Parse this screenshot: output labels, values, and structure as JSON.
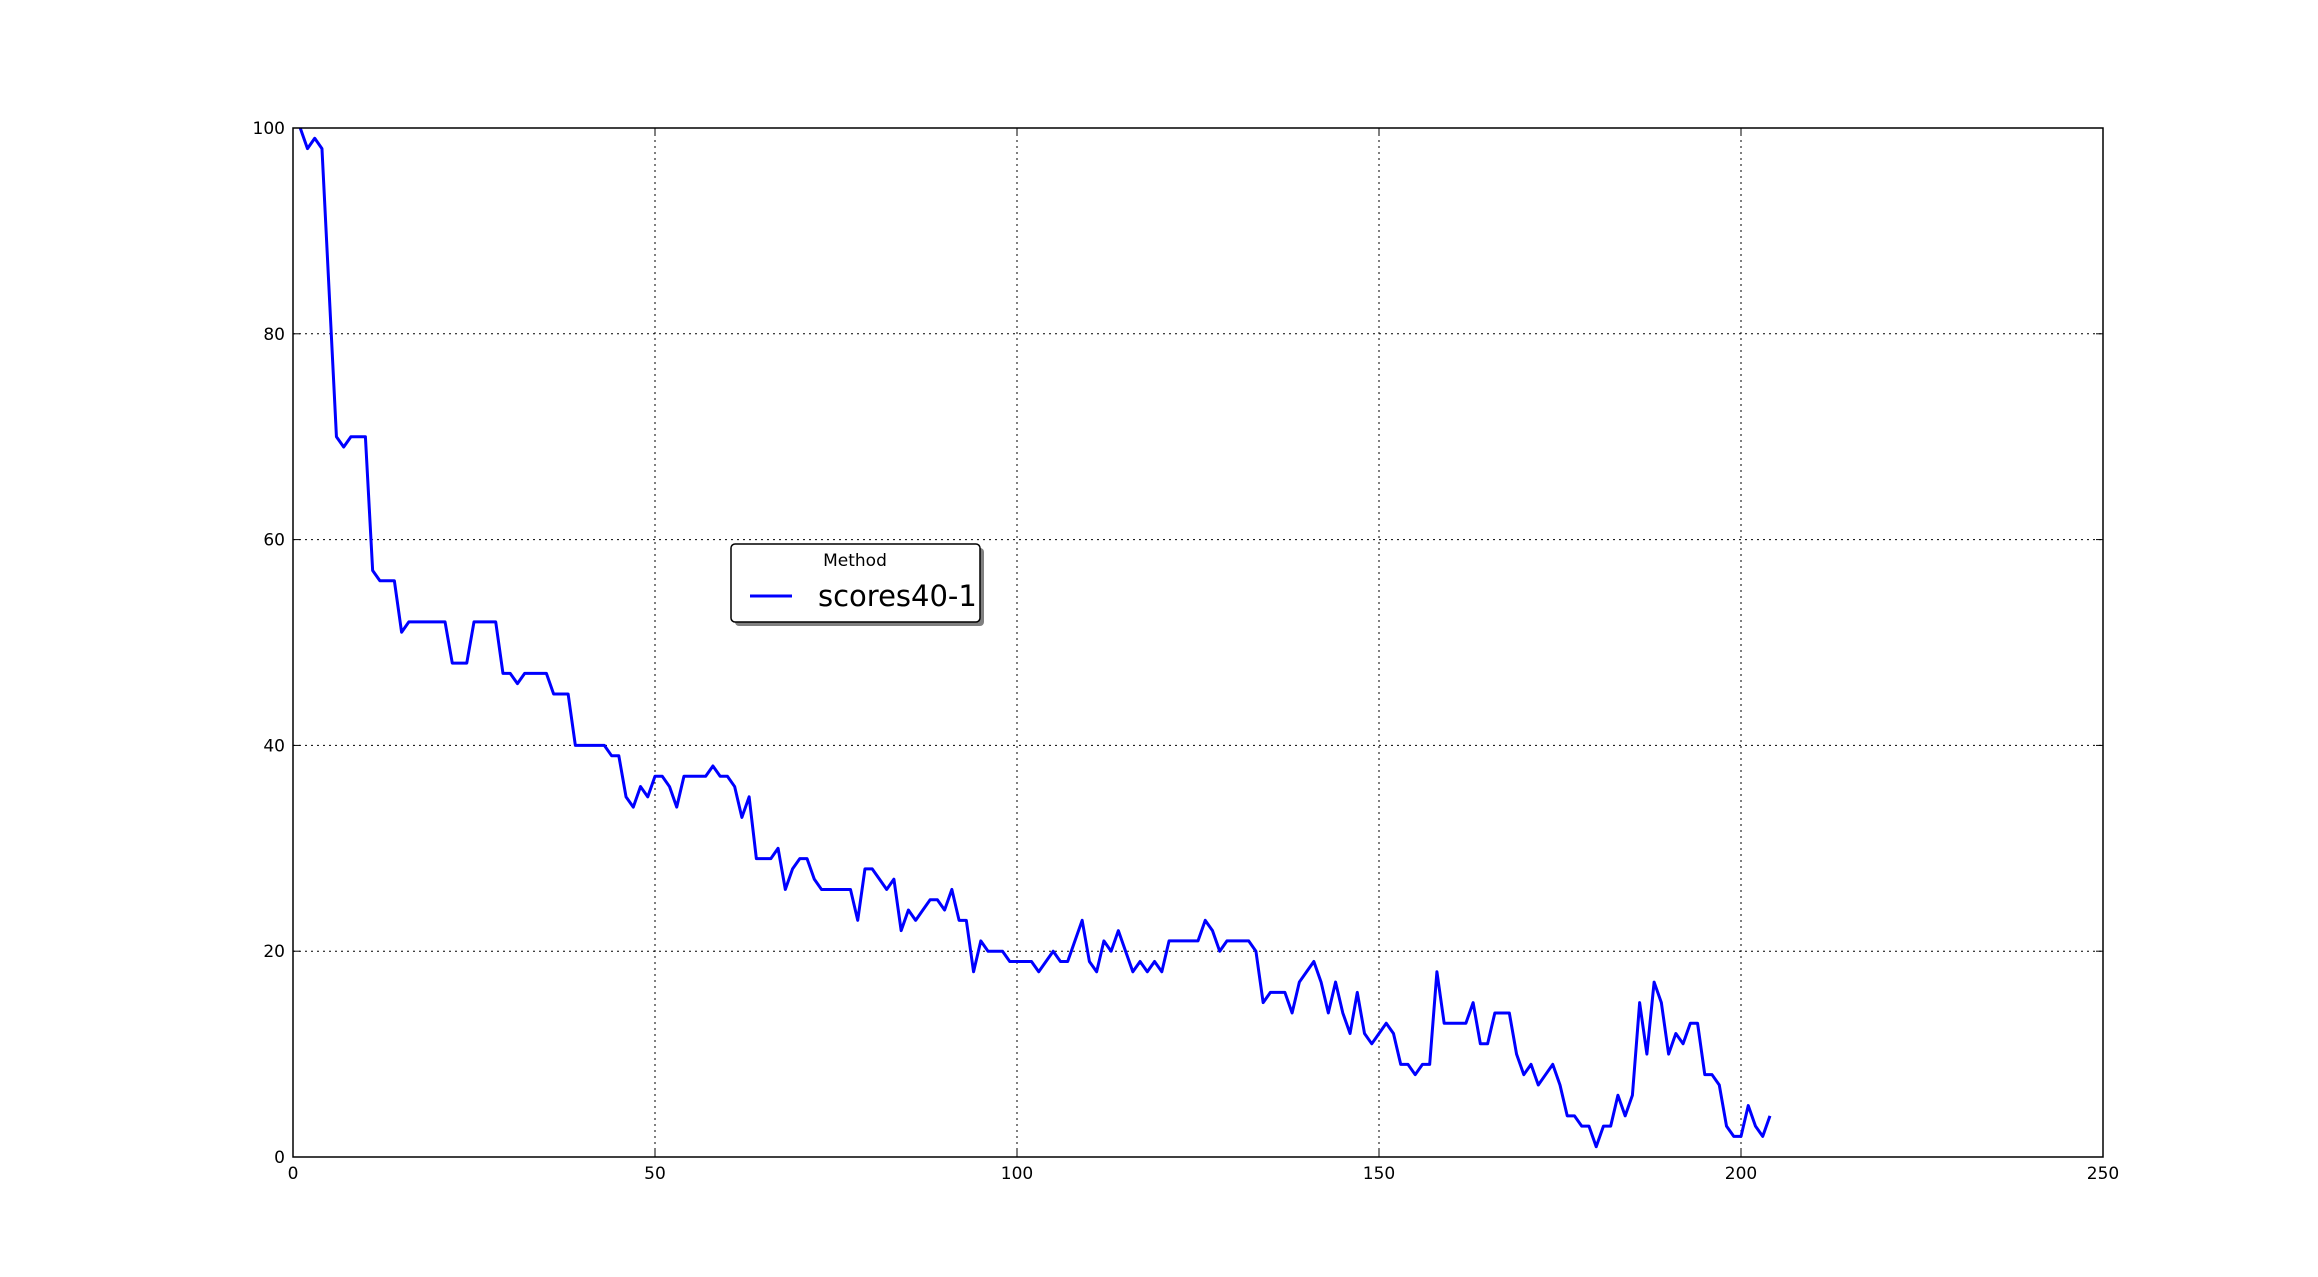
{
  "chart_data": {
    "type": "line",
    "title": "",
    "xlabel": "",
    "ylabel": "",
    "xlim": [
      0,
      250
    ],
    "ylim": [
      0,
      100
    ],
    "xticks": [
      0,
      50,
      100,
      150,
      200,
      250
    ],
    "yticks": [
      0,
      20,
      40,
      60,
      80,
      100
    ],
    "xtick_labels": [
      "0",
      "50",
      "100",
      "150",
      "200",
      "250"
    ],
    "ytick_labels": [
      "0",
      "20",
      "40",
      "60",
      "80",
      "100"
    ],
    "grid": true,
    "legend": {
      "title": "Method",
      "placement": "center-left"
    },
    "series": [
      {
        "name": "scores40-1",
        "color": "#0000ff",
        "x": [
          1,
          2,
          3,
          4,
          5,
          6,
          7,
          8,
          9,
          10,
          11,
          12,
          13,
          14,
          15,
          16,
          17,
          18,
          19,
          20,
          21,
          22,
          23,
          24,
          25,
          26,
          27,
          28,
          29,
          30,
          31,
          32,
          33,
          34,
          35,
          36,
          37,
          38,
          39,
          40,
          41,
          42,
          43,
          44,
          45,
          46,
          47,
          48,
          49,
          50,
          51,
          52,
          53,
          54,
          55,
          56,
          57,
          58,
          59,
          60,
          61,
          62,
          63,
          64,
          65,
          66,
          67,
          68,
          69,
          70,
          71,
          72,
          73,
          74,
          75,
          76,
          77,
          78,
          79,
          80,
          81,
          82,
          83,
          84,
          85,
          86,
          87,
          88,
          89,
          90,
          91,
          92,
          93,
          94,
          95,
          96,
          97,
          98,
          99,
          100,
          101,
          102,
          103,
          104,
          105,
          106,
          107,
          108,
          109,
          110,
          111,
          112,
          113,
          114,
          115,
          116,
          117,
          118,
          119,
          120,
          121,
          122,
          123,
          124,
          125,
          126,
          127,
          128,
          129,
          130,
          131,
          132,
          133,
          134,
          135,
          136,
          137,
          138,
          139,
          140,
          141,
          142,
          143,
          144,
          145,
          146,
          147,
          148,
          149,
          150,
          151,
          152,
          153,
          154,
          155,
          156,
          157,
          158,
          159,
          160,
          161,
          162,
          163,
          164,
          165,
          166,
          167,
          168,
          169,
          170,
          171,
          172,
          173,
          174,
          175,
          176,
          177,
          178,
          179,
          180,
          181,
          182,
          183,
          184,
          185,
          186,
          187,
          188,
          189,
          190,
          191,
          192,
          193,
          194,
          195,
          196,
          197,
          198,
          199,
          200,
          201,
          202,
          203,
          204
        ],
        "y": [
          100,
          98,
          99,
          98,
          84,
          70,
          69,
          70,
          70,
          70,
          57,
          56,
          56,
          56,
          51,
          52,
          52,
          52,
          52,
          52,
          52,
          48,
          48,
          48,
          52,
          52,
          52,
          52,
          47,
          47,
          46,
          47,
          47,
          47,
          47,
          45,
          45,
          45,
          40,
          40,
          40,
          40,
          40,
          39,
          39,
          35,
          34,
          36,
          35,
          37,
          37,
          36,
          34,
          37,
          37,
          37,
          37,
          38,
          37,
          37,
          36,
          33,
          35,
          29,
          29,
          29,
          30,
          26,
          28,
          29,
          29,
          27,
          26,
          26,
          26,
          26,
          26,
          23,
          28,
          28,
          27,
          26,
          27,
          22,
          24,
          23,
          24,
          25,
          25,
          24,
          26,
          23,
          23,
          18,
          21,
          20,
          20,
          20,
          19,
          19,
          19,
          19,
          18,
          19,
          20,
          19,
          19,
          21,
          23,
          19,
          18,
          21,
          20,
          22,
          20,
          18,
          19,
          18,
          19,
          18,
          21,
          21,
          21,
          21,
          21,
          23,
          22,
          20,
          21,
          21,
          21,
          21,
          20,
          15,
          16,
          16,
          16,
          14,
          17,
          18,
          19,
          17,
          14,
          17,
          14,
          12,
          16,
          12,
          11,
          12,
          13,
          12,
          9,
          9,
          8,
          9,
          9,
          18,
          13,
          13,
          13,
          13,
          15,
          11,
          11,
          14,
          14,
          14,
          10,
          8,
          9,
          7,
          8,
          9,
          7,
          4,
          4,
          3,
          3,
          1,
          3,
          3,
          6,
          4,
          6,
          15,
          10,
          17,
          15,
          10,
          12,
          11,
          13,
          13,
          8,
          8,
          7,
          3,
          2,
          2,
          5,
          3,
          2,
          4
        ]
      }
    ]
  }
}
